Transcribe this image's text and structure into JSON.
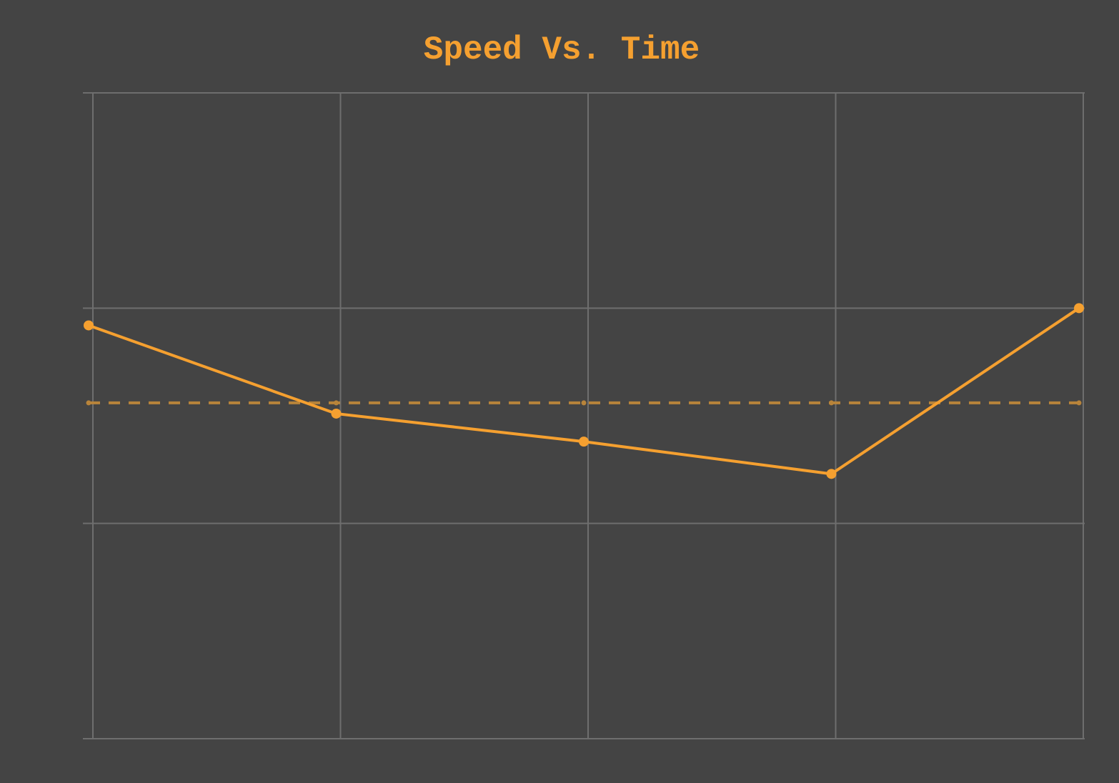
{
  "colors": {
    "background": "#444444",
    "grid": "#6e6e6e",
    "accent": "#f5a030",
    "average": "#b8843a"
  },
  "chart_data": {
    "type": "line",
    "title": "Speed Vs. Time",
    "xlabel": "",
    "ylabel": "",
    "x": [
      0,
      1,
      2,
      3,
      4
    ],
    "xlim": [
      0,
      4
    ],
    "ylim": [
      0,
      3
    ],
    "grid": true,
    "series": [
      {
        "values": [
          1.92,
          1.51,
          1.38,
          1.23,
          2.0
        ],
        "color": "#f5a030",
        "markers": true
      }
    ],
    "reference_lines": [
      {
        "style": "dashed",
        "value": 1.56,
        "color": "#b8843a"
      }
    ]
  }
}
